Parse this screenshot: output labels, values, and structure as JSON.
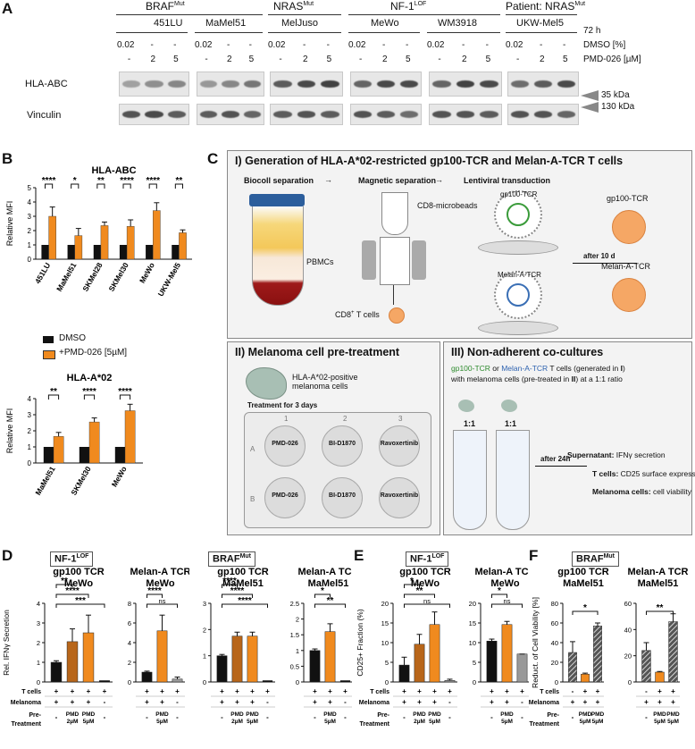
{
  "panel_a": {
    "label": "A",
    "groups": [
      {
        "title": "BRAF",
        "sup": "Mut"
      },
      {
        "title": "NRAS",
        "sup": "Mut"
      },
      {
        "title": "NF-1",
        "sup": "LOF"
      },
      {
        "title": "Patient: NRAS",
        "sup": "Mut"
      }
    ],
    "cell_lines": [
      "451LU",
      "MaMel51",
      "MelJuso",
      "MeWo",
      "WM3918",
      "UKW-Mel5"
    ],
    "dmso_row": [
      "0.02",
      "-",
      "-"
    ],
    "pmd_row": [
      "-",
      "2",
      "5"
    ],
    "row_labels": {
      "time": "72 h",
      "dmso": "DMSO [%]",
      "pmd": "PMD-026 [µM]"
    },
    "blot_labels": [
      "HLA-ABC",
      "Vinculin"
    ],
    "markers": [
      "35 kDa",
      "130 kDa"
    ]
  },
  "panel_b": {
    "label": "B",
    "legend": [
      "DMSO",
      "+PMD-026 [5µM]"
    ],
    "colors": {
      "dmso": "#111111",
      "pmd": "#f08a1e"
    }
  },
  "panel_c": {
    "label": "C",
    "section1": {
      "title": "I) Generation of HLA-A*02-restricted gp100-TCR and Melan-A-TCR T cells",
      "steps": [
        "Biocoll separation",
        "Magnetic separation",
        "Lentiviral transduction"
      ],
      "labels": [
        "PBMCs",
        "CD8-microbeads",
        "CD8",
        "+",
        " T cells",
        "gp100-TCR",
        "Melan-A-TCR",
        "after 10 d",
        "gp100-TCR",
        "Melan-A-TCR"
      ]
    },
    "section2": {
      "title": "II) Melanoma cell pre-treatment",
      "cell_label": "HLA-A*02-positive melanoma cells",
      "treatment": "Treatment for 3 days",
      "cols": [
        "1",
        "2",
        "3"
      ],
      "rows": [
        "A",
        "B"
      ],
      "drugs": [
        "PMD-026",
        "BI-D1870",
        "Ravoxertinib"
      ]
    },
    "section3": {
      "title": "III) Non-adherent co-cultures",
      "desc_gp": "gp100-TCR",
      "desc_or": " or ",
      "desc_melan": "Melan-A-TCR",
      "desc_rest1": " T cells (generated in ",
      "desc_I": "I",
      "desc_rest2": ")",
      "desc_line2a": "with melanoma cells (pre-treated in ",
      "desc_II": "II",
      "desc_line2b": ") at a 1:1 ratio",
      "ratio": "1:1",
      "after": "after 24h",
      "readouts": [
        {
          "k": "Supernatant:",
          "v": " IFNγ secretion"
        },
        {
          "k": "T cells:",
          "v": " CD25 surface expression"
        },
        {
          "k": "Melanoma cells:",
          "v": " cell viability"
        }
      ]
    }
  },
  "panel_d": {
    "label": "D",
    "headers": [
      {
        "main": "NF-1",
        "sup": "LOF"
      },
      {
        "main": "BRAF",
        "sup": "Mut"
      }
    ],
    "titles": [
      "gp100 TCR",
      "MeWo",
      "Melan-A TCR",
      "MeWo",
      "gp100 TCR",
      "MaMel51",
      "Melan-A TCR",
      "MaMel51"
    ]
  },
  "panel_e": {
    "label": "E",
    "header": {
      "main": "NF-1",
      "sup": "LOF"
    },
    "titles": [
      "gp100 TCR",
      "MeWo",
      "Melan-A TCR",
      "MeWo"
    ]
  },
  "panel_f": {
    "label": "F",
    "header": {
      "main": "BRAF",
      "sup": "Mut"
    },
    "titles": [
      "gp100 TCR",
      "MaMel51",
      "Melan-A TCR",
      "MaMel51"
    ]
  },
  "table_labels": {
    "tcells": "T cells",
    "melanoma": "Melanoma",
    "pre1": "Pre-",
    "pre2": "Treatment",
    "pmd": "PMD",
    "two": "2µM",
    "five": "5µM",
    "plus": "+",
    "minus": "-"
  },
  "chart_data": [
    {
      "type": "bar",
      "title": "HLA-ABC",
      "ylabel": "Relative MFI",
      "ylim": [
        0,
        5
      ],
      "yticks": [
        0,
        1,
        2,
        3,
        4,
        5
      ],
      "categories": [
        "451LU",
        "MaMel51",
        "SKMel28",
        "SKMel30",
        "MeWo",
        "UKW-Mel5"
      ],
      "series": [
        {
          "name": "DMSO",
          "values": [
            1,
            1,
            1,
            1,
            1,
            1
          ]
        },
        {
          "name": "+PMD-026 [5µM]",
          "values": [
            3.0,
            1.65,
            2.35,
            2.3,
            3.4,
            1.85
          ],
          "errors": [
            0.65,
            0.5,
            0.25,
            0.45,
            0.55,
            0.2
          ]
        }
      ],
      "significance": [
        "****",
        "*",
        "**",
        "****",
        "****",
        "**"
      ]
    },
    {
      "type": "bar",
      "title": "HLA-A*02",
      "ylabel": "Relative MFI",
      "ylim": [
        0,
        4
      ],
      "yticks": [
        0,
        1,
        2,
        3,
        4
      ],
      "categories": [
        "MaMel51",
        "SKMel30",
        "MeWo"
      ],
      "series": [
        {
          "name": "DMSO",
          "values": [
            1,
            1,
            1
          ]
        },
        {
          "name": "+PMD-026 [5µM]",
          "values": [
            1.65,
            2.55,
            3.25
          ],
          "errors": [
            0.25,
            0.25,
            0.4
          ]
        }
      ],
      "significance": [
        "**",
        "****",
        "****"
      ]
    },
    {
      "type": "bar",
      "title": "gp100 TCR MeWo",
      "ylabel": "Rel. IFNγ Secretion",
      "ylim": [
        0,
        4
      ],
      "yticks": [
        0,
        1,
        2,
        3,
        4
      ],
      "values": [
        1.0,
        2.05,
        2.5,
        0.0
      ],
      "errors": [
        0.08,
        0.65,
        0.9,
        0.02
      ],
      "sig": [
        "**",
        "****",
        "***"
      ]
    },
    {
      "type": "bar",
      "title": "Melan-A TCR MeWo",
      "ylim": [
        0,
        8
      ],
      "yticks": [
        0,
        2,
        4,
        6,
        8
      ],
      "values": [
        1.0,
        5.2,
        0.3
      ],
      "errors": [
        0.1,
        1.6,
        0.2
      ],
      "sig": [
        "****",
        "ns"
      ]
    },
    {
      "type": "bar",
      "title": "gp100 TCR MaMel51",
      "ylim": [
        0,
        3
      ],
      "yticks": [
        0,
        1,
        2,
        3
      ],
      "values": [
        1.0,
        1.75,
        1.75,
        0.0
      ],
      "errors": [
        0.05,
        0.15,
        0.15,
        0.02
      ],
      "sig": [
        "****",
        "****",
        "****"
      ]
    },
    {
      "type": "bar",
      "title": "Melan-A TCR MaMel51",
      "ylim": [
        0,
        2.5
      ],
      "yticks": [
        0.0,
        0.5,
        1.0,
        1.5,
        2.0,
        2.5
      ],
      "values": [
        1.0,
        1.6,
        0.0
      ],
      "errors": [
        0.05,
        0.25,
        0.02
      ],
      "sig": [
        "*",
        "**"
      ]
    },
    {
      "type": "bar",
      "title": "gp100 TCR MeWo",
      "ylabel": "CD25+ Fraction (%)",
      "ylim": [
        0,
        20
      ],
      "yticks": [
        0,
        5,
        10,
        15,
        20
      ],
      "values": [
        4.3,
        9.6,
        14.6,
        0.4
      ],
      "errors": [
        2.0,
        2.5,
        3.2,
        0.3
      ],
      "sig": [
        "*",
        "**",
        "ns"
      ]
    },
    {
      "type": "bar",
      "title": "Melan-A TCR MeWo",
      "ylim": [
        0,
        20
      ],
      "yticks": [
        0,
        5,
        10,
        15,
        20
      ],
      "values": [
        10.4,
        14.6,
        7.1
      ],
      "errors": [
        0.5,
        0.8,
        0.0
      ],
      "sig": [
        "*",
        "ns"
      ]
    },
    {
      "type": "bar",
      "title": "gp100 TCR MaMel51",
      "ylabel": "Reduct. of Cell Viability [%]",
      "ylim": [
        0,
        80
      ],
      "yticks": [
        0,
        20,
        40,
        60,
        80
      ],
      "values": [
        30,
        8,
        57
      ],
      "errors": [
        11,
        1,
        3
      ],
      "sig": [
        "*"
      ]
    },
    {
      "type": "bar",
      "title": "Melan-A TCR MaMel51",
      "ylim": [
        0,
        60
      ],
      "yticks": [
        0,
        20,
        40,
        60
      ],
      "values": [
        24,
        7.5,
        46
      ],
      "errors": [
        6,
        0.5,
        6
      ],
      "sig": [
        "**"
      ]
    }
  ]
}
